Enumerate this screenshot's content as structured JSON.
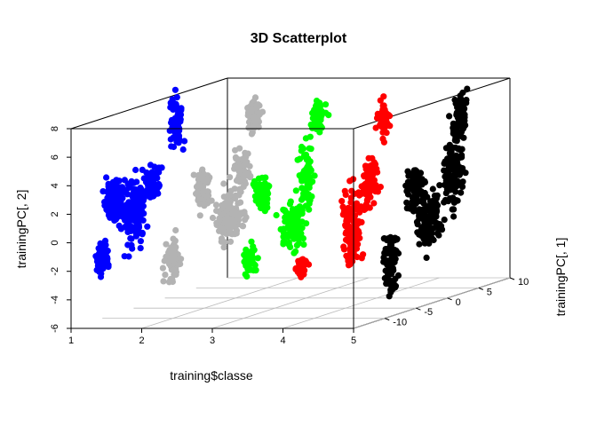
{
  "chart_data": {
    "type": "scatter",
    "title": "3D Scatterplot",
    "xlabel": "training$classe",
    "ylabel": "trainingPC[, 2]",
    "zlabel": "trainingPC[, 1]",
    "xlim": [
      1,
      5
    ],
    "ylim": [
      -6,
      8
    ],
    "zlim": [
      -15,
      10
    ],
    "x_ticks": [
      "1",
      "2",
      "3",
      "4",
      "5"
    ],
    "y_ticks": [
      "-6",
      "-4",
      "-2",
      "0",
      "2",
      "4",
      "6",
      "8"
    ],
    "z_ticks": [
      "-10",
      "-5",
      "0",
      "5",
      "10"
    ],
    "grid": "on floor plane",
    "series": [
      {
        "color": "#0000ff",
        "x": 1,
        "clusters": [
          {
            "z": -10,
            "y": -1.7,
            "sx": 0.5,
            "sy": 0.5,
            "n": 70
          },
          {
            "z": -8,
            "y": 1.9,
            "sx": 0.6,
            "sy": 0.7,
            "n": 110
          },
          {
            "z": -5,
            "y": 0.6,
            "sx": 1.0,
            "sy": 1.2,
            "n": 150
          },
          {
            "z": -2,
            "y": 2.3,
            "sx": 0.6,
            "sy": 0.6,
            "n": 80
          },
          {
            "z": 2,
            "y": 6.0,
            "sx": 0.5,
            "sy": 0.9,
            "n": 70
          }
        ]
      },
      {
        "color": "#b3b3b3",
        "x": 2,
        "clusters": [
          {
            "z": -10,
            "y": -1.9,
            "sx": 0.6,
            "sy": 0.7,
            "n": 70
          },
          {
            "z": -5,
            "y": 2.3,
            "sx": 0.5,
            "sy": 0.7,
            "n": 70
          },
          {
            "z": -1,
            "y": -0.3,
            "sx": 1.0,
            "sy": 0.9,
            "n": 120
          },
          {
            "z": 1,
            "y": 2.8,
            "sx": 0.6,
            "sy": 0.8,
            "n": 70
          },
          {
            "z": 3,
            "y": 6.4,
            "sx": 0.4,
            "sy": 0.6,
            "n": 60
          }
        ]
      },
      {
        "color": "#00ff00",
        "x": 3,
        "clusters": [
          {
            "z": -9,
            "y": -2.0,
            "sx": 0.4,
            "sy": 0.6,
            "n": 45
          },
          {
            "z": -7,
            "y": 2.2,
            "sx": 0.5,
            "sy": 0.6,
            "n": 70
          },
          {
            "z": -2,
            "y": -0.7,
            "sx": 0.8,
            "sy": 0.8,
            "n": 110
          },
          {
            "z": 0,
            "y": 2.6,
            "sx": 0.5,
            "sy": 1.0,
            "n": 80
          },
          {
            "z": 2,
            "y": 6.5,
            "sx": 0.4,
            "sy": 0.6,
            "n": 60
          }
        ]
      },
      {
        "color": "#ff0000",
        "x": 4,
        "clusters": [
          {
            "z": -12,
            "y": -2.0,
            "sx": 0.4,
            "sy": 0.4,
            "n": 40
          },
          {
            "z": -4,
            "y": -0.4,
            "sx": 0.7,
            "sy": 1.4,
            "n": 130
          },
          {
            "z": -1,
            "y": 2.3,
            "sx": 0.5,
            "sy": 0.8,
            "n": 90
          },
          {
            "z": 1,
            "y": 6.4,
            "sx": 0.4,
            "sy": 0.6,
            "n": 60
          }
        ]
      },
      {
        "color": "#000000",
        "x": 5,
        "clusters": [
          {
            "z": -9,
            "y": -2.3,
            "sx": 0.5,
            "sy": 1.0,
            "n": 70
          },
          {
            "z": -5,
            "y": 2.4,
            "sx": 0.6,
            "sy": 0.8,
            "n": 100
          },
          {
            "z": -3,
            "y": 0.0,
            "sx": 0.9,
            "sy": 1.0,
            "n": 130
          },
          {
            "z": 1,
            "y": 2.7,
            "sx": 0.7,
            "sy": 1.2,
            "n": 130
          },
          {
            "z": 2,
            "y": 6.6,
            "sx": 0.5,
            "sy": 0.8,
            "n": 70
          }
        ]
      }
    ]
  }
}
